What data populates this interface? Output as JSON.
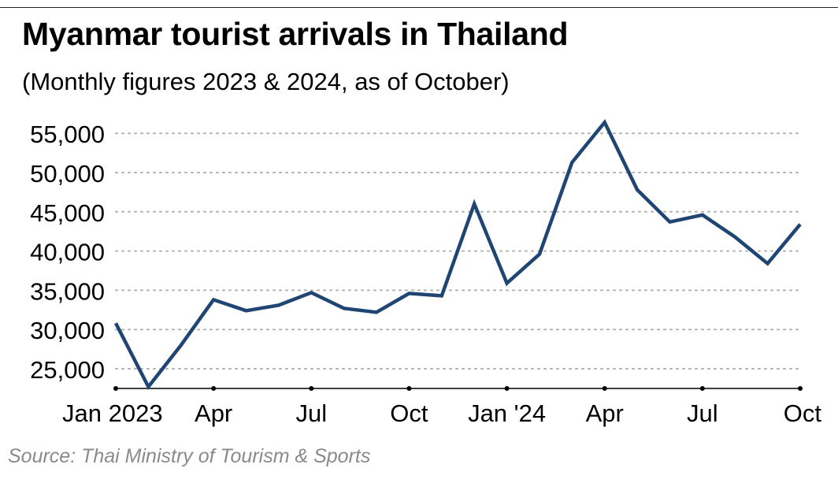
{
  "title": "Myanmar tourist arrivals in Thailand",
  "subtitle": "(Monthly figures 2023 & 2024, as of October)",
  "source": "Source: Thai Ministry of Tourism & Sports",
  "colors": {
    "line": "#1f4673",
    "grid": "#b0b0b0",
    "axis": "#000000"
  },
  "chart_data": {
    "type": "line",
    "title": "Myanmar tourist arrivals in Thailand",
    "subtitle": "(Monthly figures 2023 & 2024, as of October)",
    "xlabel": "",
    "ylabel": "",
    "ylim": [
      22500,
      56500
    ],
    "grid": "horizontal dotted",
    "yticks": [
      25000,
      30000,
      35000,
      40000,
      45000,
      50000,
      55000
    ],
    "ytick_labels": [
      "25,000",
      "30,000",
      "35,000",
      "40,000",
      "45,000",
      "50,000",
      "55,000"
    ],
    "xticks": [
      {
        "x": "2023-01",
        "label": "Jan 2023"
      },
      {
        "x": "2023-04",
        "label": "Apr"
      },
      {
        "x": "2023-07",
        "label": "Jul"
      },
      {
        "x": "2023-10",
        "label": "Oct"
      },
      {
        "x": "2024-01",
        "label": "Jan '24"
      },
      {
        "x": "2024-04",
        "label": "Apr"
      },
      {
        "x": "2024-07",
        "label": "Jul"
      },
      {
        "x": "2024-10",
        "label": "Oct"
      }
    ],
    "x": [
      "2023-01",
      "2023-02",
      "2023-03",
      "2023-04",
      "2023-05",
      "2023-06",
      "2023-07",
      "2023-08",
      "2023-09",
      "2023-10",
      "2023-11",
      "2023-12",
      "2024-01",
      "2024-02",
      "2024-03",
      "2024-04",
      "2024-05",
      "2024-06",
      "2024-07",
      "2024-08",
      "2024-09",
      "2024-10"
    ],
    "series": [
      {
        "values": [
          30800,
          22700,
          28000,
          33800,
          32400,
          33100,
          34700,
          32700,
          32200,
          34600,
          34300,
          46000,
          35900,
          39600,
          51300,
          56400,
          47800,
          43700,
          44600,
          41800,
          38400,
          43400
        ]
      }
    ]
  }
}
